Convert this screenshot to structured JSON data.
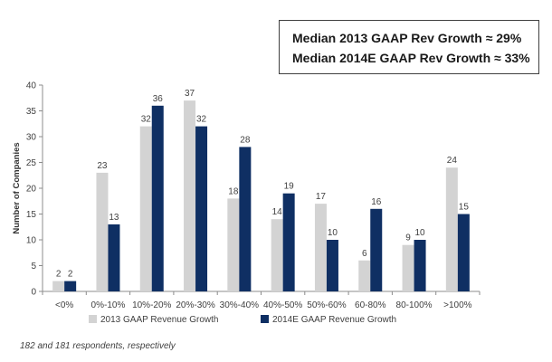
{
  "median_box": {
    "line1": "Median 2013 GAAP Rev Growth ≈ 29%",
    "line2": "Median 2014E GAAP Rev Growth ≈ 33%"
  },
  "footnote": "182 and 181 respondents, respectively",
  "colors": {
    "series_2013": "#d3d3d3",
    "series_2014": "#0f2f63",
    "axis": "#8c8c8c",
    "text": "#404040"
  },
  "chart_data": {
    "type": "bar",
    "title": "",
    "xlabel": "",
    "ylabel": "Number of Companies",
    "ylim": [
      0,
      40
    ],
    "yticks": [
      0,
      5,
      10,
      15,
      20,
      25,
      30,
      35,
      40
    ],
    "grid": false,
    "legend_position": "bottom",
    "categories": [
      "<0%",
      "0%-10%",
      "10%-20%",
      "20%-30%",
      "30%-40%",
      "40%-50%",
      "50%-60%",
      "60-80%",
      "80-100%",
      ">100%"
    ],
    "series": [
      {
        "name": "2013 GAAP Revenue Growth",
        "values": [
          2,
          23,
          32,
          37,
          18,
          14,
          17,
          6,
          9,
          24
        ]
      },
      {
        "name": "2014E GAAP Revenue Growth",
        "values": [
          2,
          13,
          36,
          32,
          28,
          19,
          10,
          16,
          10,
          15
        ]
      }
    ]
  }
}
